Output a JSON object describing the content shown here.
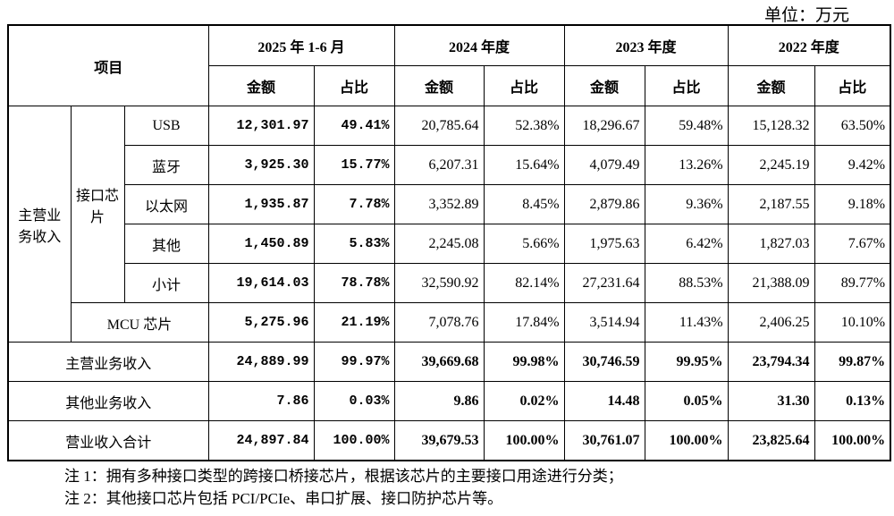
{
  "unit": "单位：万元",
  "table": {
    "header": {
      "item": "项目",
      "periods": [
        "2025 年 1-6 月",
        "2024 年度",
        "2023 年度",
        "2022 年度"
      ],
      "amount": "金额",
      "share": "占比"
    },
    "groups": {
      "main": "主营业务收入",
      "interface": "接口芯片"
    },
    "rows": [
      {
        "label": "USB",
        "cells": [
          "12,301.97",
          "49.41%",
          "20,785.64",
          "52.38%",
          "18,296.67",
          "59.48%",
          "15,128.32",
          "63.50%"
        ]
      },
      {
        "label": "蓝牙",
        "cells": [
          "3,925.30",
          "15.77%",
          "6,207.31",
          "15.64%",
          "4,079.49",
          "13.26%",
          "2,245.19",
          "9.42%"
        ]
      },
      {
        "label": "以太网",
        "cells": [
          "1,935.87",
          "7.78%",
          "3,352.89",
          "8.45%",
          "2,879.86",
          "9.36%",
          "2,187.55",
          "9.18%"
        ]
      },
      {
        "label": "其他",
        "cells": [
          "1,450.89",
          "5.83%",
          "2,245.08",
          "5.66%",
          "1,975.63",
          "6.42%",
          "1,827.03",
          "7.67%"
        ]
      },
      {
        "label": "小计",
        "cells": [
          "19,614.03",
          "78.78%",
          "32,590.92",
          "82.14%",
          "27,231.64",
          "88.53%",
          "21,388.09",
          "89.77%"
        ]
      },
      {
        "label": "MCU 芯片",
        "cells": [
          "5,275.96",
          "21.19%",
          "7,078.76",
          "17.84%",
          "3,514.94",
          "11.43%",
          "2,406.25",
          "10.10%"
        ]
      },
      {
        "label": "主营业务收入",
        "cells": [
          "24,889.99",
          "99.97%",
          "39,669.68",
          "99.98%",
          "30,746.59",
          "99.95%",
          "23,794.34",
          "99.87%"
        ]
      },
      {
        "label": "其他业务收入",
        "cells": [
          "7.86",
          "0.03%",
          "9.86",
          "0.02%",
          "14.48",
          "0.05%",
          "31.30",
          "0.13%"
        ]
      },
      {
        "label": "营业收入合计",
        "cells": [
          "24,897.84",
          "100.00%",
          "39,679.53",
          "100.00%",
          "30,761.07",
          "100.00%",
          "23,825.64",
          "100.00%"
        ]
      }
    ]
  },
  "notes": [
    "注 1：拥有多种接口类型的跨接口桥接芯片，根据该芯片的主要接口用途进行分类；",
    "注 2：其他接口芯片包括 PCI/PCIe、串口扩展、接口防护芯片等。"
  ]
}
